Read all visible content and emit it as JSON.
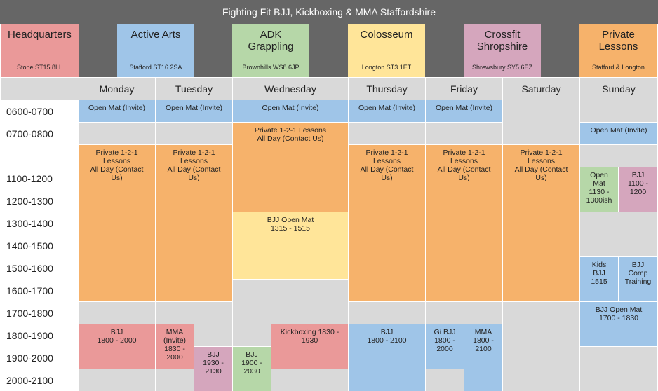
{
  "title": "Fighting Fit BJJ, Kickboxing & MMA Staffordshire",
  "locations": [
    {
      "name": "Headquarters",
      "address": "Stone ST15 8LL",
      "color": "#ea9999"
    },
    {
      "name": "Active Arts",
      "address": "Stafford ST16 2SA",
      "color": "#9fc5e8"
    },
    {
      "name": "ADK\nGrappling",
      "address": "Brownhills WS8 6JP",
      "color": "#b6d7a8"
    },
    {
      "name": "Colosseum",
      "address": "Longton ST3 1ET",
      "color": "#ffe599"
    },
    {
      "name": "Crossfit\nShropshire",
      "address": "Shrewsbury SY5 6EZ",
      "color": "#d5a6bd"
    },
    {
      "name": "Private\nLessons",
      "address": "Stafford & Longton",
      "color": "#f6b26b"
    }
  ],
  "days": [
    "Monday",
    "Tuesday",
    "Wednesday",
    "Thursday",
    "Friday",
    "Saturday",
    "Sunday"
  ],
  "times": [
    "0600-0700",
    "0700-0800",
    "",
    "1100-1200",
    "1200-1300",
    "1300-1400",
    "1400-1500",
    "1500-1600",
    "1600-1700",
    "1700-1800",
    "1800-1900",
    "1900-2000",
    "2000-2100"
  ],
  "events": {
    "mon_open": "Open Mat (Invite)",
    "tue_open": "Open Mat (Invite)",
    "wed_open": "Open Mat (Invite)",
    "thu_open": "Open Mat (Invite)",
    "fri_open": "Open Mat (Invite)",
    "sun_open": "Open Mat (Invite)",
    "wed_private": "Private 1-2-1 Lessons\nAll Day (Contact Us)",
    "mon_private": "Private 1-2-1\nLessons\nAll Day (Contact\nUs)",
    "tue_private": "Private 1-2-1\nLessons\nAll Day (Contact\nUs)",
    "thu_private": "Private 1-2-1\nLessons\nAll Day (Contact\nUs)",
    "fri_private": "Private 1-2-1\nLessons\nAll Day (Contact\nUs)",
    "sat_private": "Private 1-2-1\nLessons\nAll Day (Contact\nUs)",
    "sun_open_mat_midday": "Open\nMat\n1130 -\n1300ish",
    "sun_bjj_midday": "BJJ\n1100 -\n1200",
    "wed_bjj_open_mat": "BJJ Open Mat\n1315 - 1515",
    "sun_kids_bjj": "Kids\nBJJ\n1515",
    "sun_bjj_comp": "BJJ\nComp\nTraining",
    "sun_bjj_open_mat_evening": "BJJ Open Mat\n1700 - 1830",
    "mon_bjj": "BJJ\n1800 - 2000",
    "tue_mma": "MMA\n(Invite)\n1830 -\n2000",
    "tue_bjj": "BJJ\n1930 -\n2130",
    "wed_kickboxing": "Kickboxing 1830 -\n1930",
    "wed_bjj": "BJJ\n1900 -\n2030",
    "thu_bjj": "BJJ\n1800 - 2100",
    "fri_gi_bjj": "Gi BJJ\n1800 -\n2000",
    "fri_mma": "MMA\n1800 -\n2100"
  }
}
